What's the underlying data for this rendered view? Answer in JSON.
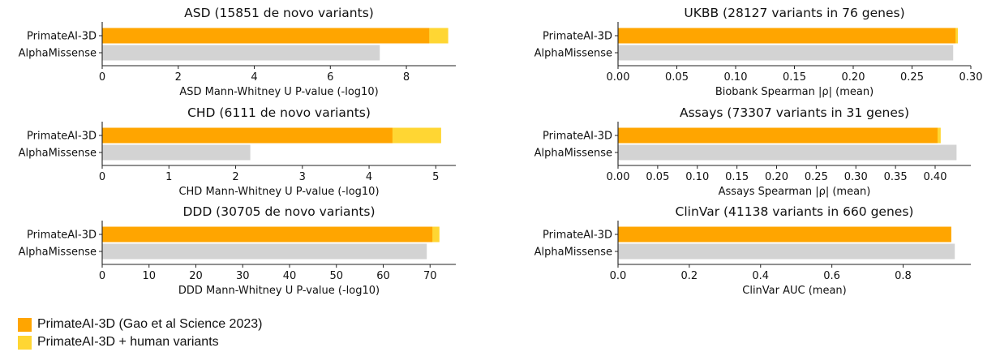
{
  "colors": {
    "base": "#FFA500",
    "human": "#FFD633",
    "alpha": "#D3D3D3",
    "axis": "#222222"
  },
  "legend": [
    {
      "label": "PrimateAI-3D (Gao et al Science 2023)",
      "color": "#FFA500"
    },
    {
      "label": "PrimateAI-3D + human variants",
      "color": "#FFD633"
    }
  ],
  "chart_data": [
    {
      "type": "bar",
      "orientation": "horizontal",
      "title": "ASD (15851 de novo variants)",
      "xlabel": "ASD Mann-Whitney U P-value (-log10)",
      "xlim": [
        0,
        9.3
      ],
      "xticks": [
        "0",
        "2",
        "4",
        "6",
        "8"
      ],
      "categories": [
        "PrimateAI-3D",
        "AlphaMissense"
      ],
      "series": [
        {
          "name": "PrimateAI-3D (Gao et al Science 2023)",
          "values": [
            8.6,
            null
          ]
        },
        {
          "name": "PrimateAI-3D + human variants",
          "values": [
            9.1,
            null
          ]
        },
        {
          "name": "AlphaMissense",
          "values": [
            null,
            7.3
          ]
        }
      ]
    },
    {
      "type": "bar",
      "orientation": "horizontal",
      "title": "CHD (6111 de novo variants)",
      "xlabel": "CHD Mann-Whitney U P-value (-log10)",
      "xlim": [
        0,
        5.3
      ],
      "xticks": [
        "0",
        "1",
        "2",
        "3",
        "4",
        "5"
      ],
      "categories": [
        "PrimateAI-3D",
        "AlphaMissense"
      ],
      "series": [
        {
          "name": "PrimateAI-3D (Gao et al Science 2023)",
          "values": [
            4.35,
            null
          ]
        },
        {
          "name": "PrimateAI-3D + human variants",
          "values": [
            5.08,
            null
          ]
        },
        {
          "name": "AlphaMissense",
          "values": [
            null,
            2.22
          ]
        }
      ]
    },
    {
      "type": "bar",
      "orientation": "horizontal",
      "title": "DDD (30705 de novo variants)",
      "xlabel": "DDD Mann-Whitney U P-value (-log10)",
      "xlim": [
        0,
        75.5
      ],
      "xticks": [
        "0",
        "10",
        "20",
        "30",
        "40",
        "50",
        "60",
        "70"
      ],
      "categories": [
        "PrimateAI-3D",
        "AlphaMissense"
      ],
      "series": [
        {
          "name": "PrimateAI-3D (Gao et al Science 2023)",
          "values": [
            70.5,
            null
          ]
        },
        {
          "name": "PrimateAI-3D + human variants",
          "values": [
            72.0,
            null
          ]
        },
        {
          "name": "AlphaMissense",
          "values": [
            null,
            69.3
          ]
        }
      ]
    },
    {
      "type": "bar",
      "orientation": "horizontal",
      "title": "UKBB (28127 variants in 76 genes)",
      "xlabel": "Biobank Spearman |ρ| (mean)",
      "xlim": [
        0,
        0.3
      ],
      "xticks": [
        "0.00",
        "0.05",
        "0.10",
        "0.15",
        "0.20",
        "0.25",
        "0.30"
      ],
      "categories": [
        "PrimateAI-3D",
        "AlphaMissense"
      ],
      "series": [
        {
          "name": "PrimateAI-3D (Gao et al Science 2023)",
          "values": [
            0.287,
            null
          ]
        },
        {
          "name": "PrimateAI-3D + human variants",
          "values": [
            0.289,
            null
          ]
        },
        {
          "name": "AlphaMissense",
          "values": [
            null,
            0.285
          ]
        }
      ]
    },
    {
      "type": "bar",
      "orientation": "horizontal",
      "title": "Assays (73307 variants in 31 genes)",
      "xlabel": "Assays Spearman |ρ| (mean)",
      "xlim": [
        0,
        0.445
      ],
      "xticks": [
        "0.00",
        "0.05",
        "0.10",
        "0.15",
        "0.20",
        "0.25",
        "0.30",
        "0.35",
        "0.40"
      ],
      "categories": [
        "PrimateAI-3D",
        "AlphaMissense"
      ],
      "series": [
        {
          "name": "PrimateAI-3D (Gao et al Science 2023)",
          "values": [
            0.403,
            null
          ]
        },
        {
          "name": "PrimateAI-3D + human variants",
          "values": [
            0.407,
            null
          ]
        },
        {
          "name": "AlphaMissense",
          "values": [
            null,
            0.427
          ]
        }
      ]
    },
    {
      "type": "bar",
      "orientation": "horizontal",
      "title": "ClinVar (41138 variants in 660 genes)",
      "xlabel": "ClinVar AUC (mean)",
      "xlim": [
        0,
        0.99
      ],
      "xticks": [
        "0.0",
        "0.2",
        "0.4",
        "0.6",
        "0.8"
      ],
      "categories": [
        "PrimateAI-3D",
        "AlphaMissense"
      ],
      "series": [
        {
          "name": "PrimateAI-3D (Gao et al Science 2023)",
          "values": [
            0.935,
            null
          ]
        },
        {
          "name": "PrimateAI-3D + human variants",
          "values": [
            0.935,
            null
          ]
        },
        {
          "name": "AlphaMissense",
          "values": [
            null,
            0.945
          ]
        }
      ]
    }
  ]
}
